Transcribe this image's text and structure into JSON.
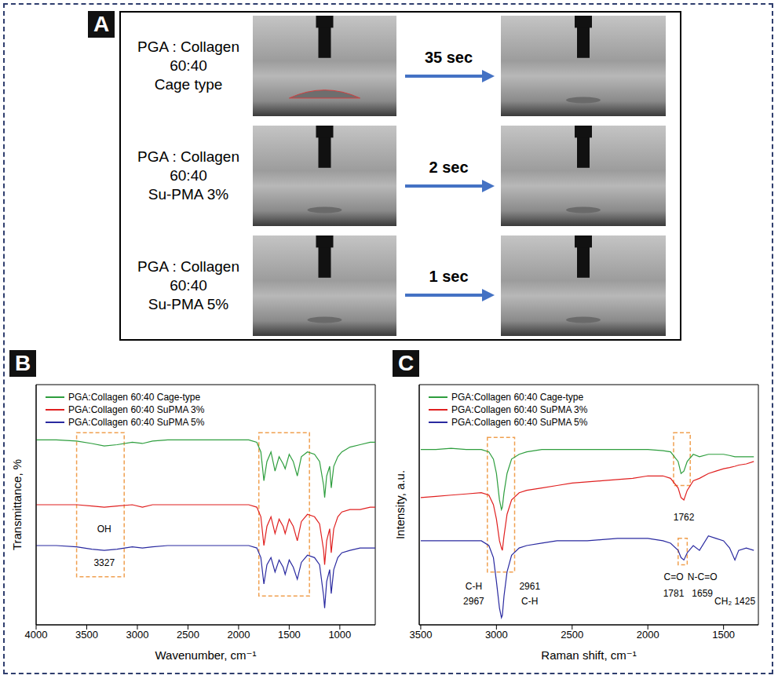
{
  "panel_a": {
    "letter": "A",
    "rows": [
      {
        "label": [
          "PGA : Collagen",
          "60:40",
          "Cage type"
        ],
        "time": "35 sec"
      },
      {
        "label": [
          "PGA : Collagen",
          "60:40",
          "Su-PMA 3%"
        ],
        "time": "2 sec"
      },
      {
        "label": [
          "PGA : Collagen",
          "60:40",
          "Su-PMA 5%"
        ],
        "time": "1 sec"
      }
    ]
  },
  "chart_data": [
    {
      "type": "line",
      "panel": "B",
      "x_label": "Wavenumber, cm⁻¹",
      "y_label": "Transmittance, %",
      "xlim": [
        4000,
        650
      ],
      "xticks": [
        4000,
        3500,
        3000,
        2500,
        2000,
        1500,
        1000
      ],
      "ylim": [
        0,
        100
      ],
      "yticks": [],
      "tick_labels": "x",
      "legend": "upper left",
      "x": [
        4000,
        3800,
        3600,
        3450,
        3327,
        3200,
        3050,
        2950,
        2850,
        2700,
        2500,
        2300,
        2100,
        1900,
        1820,
        1780,
        1750,
        1720,
        1680,
        1640,
        1600,
        1560,
        1540,
        1500,
        1460,
        1420,
        1380,
        1320,
        1250,
        1200,
        1160,
        1150,
        1130,
        1100,
        1085,
        1060,
        1020,
        980,
        900,
        800,
        700,
        650
      ],
      "series": [
        {
          "name": "PGA:Collagen 60:40 Cage-type",
          "color": "#2e9e3e",
          "values": [
            77,
            77,
            76.5,
            75.5,
            74.5,
            75,
            76,
            75.5,
            76.5,
            77,
            77,
            77,
            77,
            77,
            76,
            72,
            60,
            68,
            72,
            64,
            70,
            67,
            65,
            71,
            68,
            62,
            70,
            72,
            71,
            68,
            58,
            53,
            62,
            66,
            57,
            66,
            70,
            72,
            74,
            75,
            76,
            76
          ]
        },
        {
          "name": "PGA:Collagen 60:40 SuPMA 3%",
          "color": "#e02020",
          "values": [
            50,
            50,
            50,
            49.5,
            49,
            49.5,
            50,
            49,
            50,
            50,
            50,
            50,
            50,
            50,
            49,
            45,
            33,
            41,
            45,
            38,
            44,
            41,
            38,
            44,
            41,
            35,
            43,
            46,
            45,
            42,
            31,
            25,
            35,
            40,
            30,
            40,
            45,
            47,
            48,
            48,
            49,
            49
          ]
        },
        {
          "name": "PGA:Collagen 60:40 SuPMA 5%",
          "color": "#2a2aa0",
          "values": [
            33,
            33,
            32.5,
            31.5,
            31,
            31.5,
            32.5,
            32,
            32.5,
            33,
            33,
            33,
            33,
            33,
            32,
            28,
            17,
            25,
            28,
            22,
            27,
            24,
            21,
            27,
            24,
            19,
            26,
            29,
            28,
            25,
            12,
            7,
            18,
            23,
            13,
            23,
            28,
            30,
            31,
            32,
            32,
            32
          ]
        }
      ],
      "highlights": [
        {
          "x": [
            3600,
            3130
          ],
          "y": [
            20,
            80
          ]
        },
        {
          "x": [
            1800,
            1300
          ],
          "y": [
            12,
            80
          ]
        }
      ],
      "annotations": [
        {
          "text": "OH",
          "x": 3327,
          "y": 40
        },
        {
          "text": "3327",
          "x": 3327,
          "y": 26
        }
      ]
    },
    {
      "type": "line",
      "panel": "C",
      "x_label": "Raman shift, cm⁻¹",
      "y_label": "Intensity, a.u.",
      "xlim": [
        3510,
        1270
      ],
      "xticks": [
        3500,
        3000,
        2500,
        2000,
        1500
      ],
      "ylim": [
        0,
        100
      ],
      "yticks": [],
      "tick_labels": "x",
      "legend": "upper left",
      "x": [
        3500,
        3400,
        3300,
        3200,
        3100,
        3050,
        3020,
        3000,
        2980,
        2967,
        2961,
        2950,
        2930,
        2900,
        2850,
        2800,
        2700,
        2600,
        2500,
        2400,
        2300,
        2200,
        2100,
        2000,
        1900,
        1850,
        1800,
        1781,
        1762,
        1740,
        1700,
        1659,
        1600,
        1550,
        1500,
        1460,
        1425,
        1400,
        1350,
        1300
      ],
      "series": [
        {
          "name": "PGA:Collagen 60:40 Cage-type",
          "color": "#2e9e3e",
          "values": [
            73,
            73,
            73.5,
            73,
            73,
            72,
            69,
            63,
            52,
            48,
            49,
            55,
            63,
            69,
            71,
            72,
            73,
            73,
            73,
            73,
            73,
            73,
            73,
            73,
            72.5,
            72,
            68,
            63,
            64,
            68,
            71,
            70,
            71,
            71,
            71,
            70.5,
            70,
            70,
            70,
            70
          ]
        },
        {
          "name": "PGA:Collagen 60:40 SuPMA 3%",
          "color": "#e02020",
          "values": [
            53,
            53.5,
            54,
            54.5,
            55,
            54,
            50,
            44,
            35,
            32,
            31,
            37,
            46,
            52,
            55,
            56,
            57,
            58,
            59,
            59.5,
            60,
            60.5,
            61,
            62,
            62,
            61,
            57,
            53,
            52,
            56,
            60,
            61,
            63,
            64,
            65,
            65.5,
            66,
            66.5,
            67,
            68
          ]
        },
        {
          "name": "PGA:Collagen 60:40 SuPMA 5%",
          "color": "#2a2aa0",
          "values": [
            35,
            35,
            35,
            35,
            35,
            33,
            28,
            18,
            7,
            3,
            4,
            12,
            22,
            29,
            32,
            33,
            34,
            35,
            35,
            35,
            35.5,
            36,
            36,
            36,
            35,
            34,
            31,
            28,
            27,
            30,
            33,
            31,
            37,
            36,
            35,
            32,
            27,
            31,
            32,
            31
          ]
        }
      ],
      "highlights": [
        {
          "x": [
            3060,
            2880
          ],
          "y": [
            22,
            78
          ]
        },
        {
          "x": [
            1830,
            1720
          ],
          "y": [
            58,
            80
          ]
        },
        {
          "x": [
            1800,
            1740
          ],
          "y": [
            25,
            36
          ]
        }
      ],
      "annotations": [
        {
          "text": "C-H",
          "x": 3150,
          "y": 16
        },
        {
          "text": "2967",
          "x": 3150,
          "y": 10
        },
        {
          "text": "2961",
          "x": 2780,
          "y": 16
        },
        {
          "text": "C-H",
          "x": 2780,
          "y": 10
        },
        {
          "text": "C=O",
          "x": 1830,
          "y": 20
        },
        {
          "text": "1781",
          "x": 1830,
          "y": 13
        },
        {
          "text": "1762",
          "x": 1762,
          "y": 45
        },
        {
          "text": "N-C=O",
          "x": 1640,
          "y": 20
        },
        {
          "text": "1659",
          "x": 1640,
          "y": 13
        },
        {
          "text": "CH₂ 1425",
          "x": 1425,
          "y": 10
        }
      ]
    }
  ]
}
